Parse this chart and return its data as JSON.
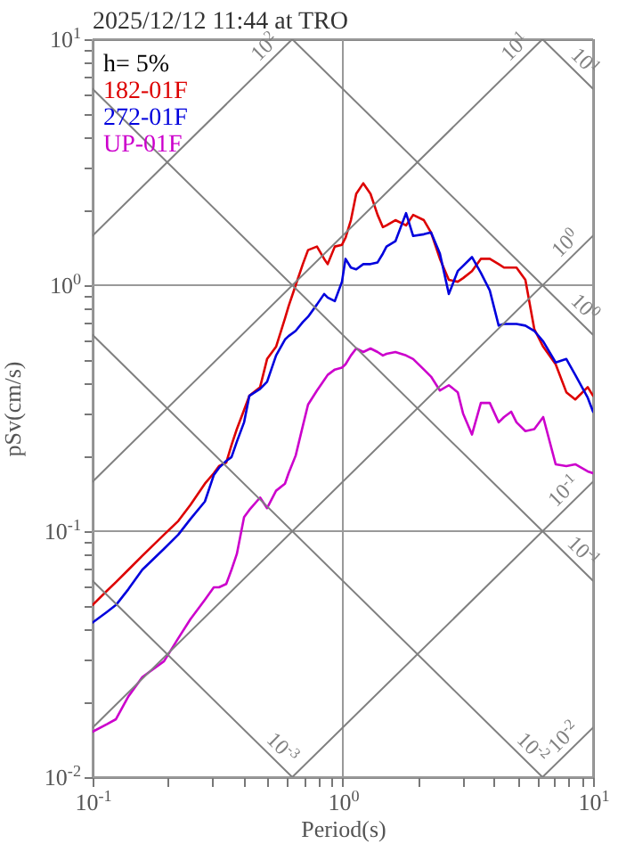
{
  "chart_data": {
    "type": "line",
    "title": "2025/12/12 11:44 at TRO",
    "xlabel": "Period(s)",
    "ylabel": "pSv(cm/s)",
    "legend_title": "h= 5%",
    "log": "xy",
    "grid": true,
    "legend": "top left",
    "xlim": [
      0.1,
      10
    ],
    "ylim": [
      0.01,
      10
    ],
    "xticks": [
      {
        "value": 0.1,
        "label": "10$^{-1}$"
      },
      {
        "value": 0.2,
        "label": null
      },
      {
        "value": 0.3,
        "label": null
      },
      {
        "value": 0.4,
        "label": null
      },
      {
        "value": 0.5,
        "label": null
      },
      {
        "value": 0.6,
        "label": null
      },
      {
        "value": 0.7,
        "label": null
      },
      {
        "value": 0.8,
        "label": null
      },
      {
        "value": 0.9,
        "label": null
      },
      {
        "value": 1,
        "label": "10$^{0}$"
      },
      {
        "value": 2,
        "label": null
      },
      {
        "value": 3,
        "label": null
      },
      {
        "value": 4,
        "label": null
      },
      {
        "value": 5,
        "label": null
      },
      {
        "value": 6,
        "label": null
      },
      {
        "value": 7,
        "label": null
      },
      {
        "value": 8,
        "label": null
      },
      {
        "value": 9,
        "label": null
      },
      {
        "value": 10,
        "label": "10$^{1}$"
      }
    ],
    "yticks": [
      {
        "value": 0.01,
        "label": "10$^{-2}$"
      },
      {
        "value": 0.02,
        "label": null
      },
      {
        "value": 0.03,
        "label": null
      },
      {
        "value": 0.04,
        "label": null
      },
      {
        "value": 0.05,
        "label": null
      },
      {
        "value": 0.06,
        "label": null
      },
      {
        "value": 0.07,
        "label": null
      },
      {
        "value": 0.08,
        "label": null
      },
      {
        "value": 0.09,
        "label": null
      },
      {
        "value": 0.1,
        "label": "10$^{-1}$"
      },
      {
        "value": 0.2,
        "label": null
      },
      {
        "value": 0.3,
        "label": null
      },
      {
        "value": 0.4,
        "label": null
      },
      {
        "value": 0.5,
        "label": null
      },
      {
        "value": 0.6,
        "label": null
      },
      {
        "value": 0.7,
        "label": null
      },
      {
        "value": 0.8,
        "label": null
      },
      {
        "value": 0.9,
        "label": null
      },
      {
        "value": 1,
        "label": "10$^{0}$"
      },
      {
        "value": 2,
        "label": null
      },
      {
        "value": 3,
        "label": null
      },
      {
        "value": 4,
        "label": null
      },
      {
        "value": 5,
        "label": null
      },
      {
        "value": 6,
        "label": null
      },
      {
        "value": 7,
        "label": null
      },
      {
        "value": 8,
        "label": null
      },
      {
        "value": 9,
        "label": null
      },
      {
        "value": 10,
        "label": "10$^{1}$"
      }
    ],
    "x": [
      0.1,
      0.114,
      0.124,
      0.139,
      0.158,
      0.193,
      0.22,
      0.246,
      0.281,
      0.305,
      0.32,
      0.342,
      0.359,
      0.377,
      0.403,
      0.423,
      0.467,
      0.498,
      0.541,
      0.587,
      0.607,
      0.648,
      0.692,
      0.726,
      0.788,
      0.842,
      0.87,
      0.929,
      0.992,
      1.025,
      1.077,
      1.131,
      1.207,
      1.29,
      1.377,
      1.446,
      1.495,
      1.622,
      1.789,
      1.91,
      2.108,
      2.251,
      2.443,
      2.652,
      2.879,
      3.023,
      3.281,
      3.561,
      3.866,
      4.196,
      4.407,
      4.706,
      4.943,
      5.364,
      5.823,
      6.321,
      7.089,
      7.821,
      8.488,
      9.52,
      10
    ],
    "series": [
      {
        "name": "182-01F",
        "color": "#dd0000",
        "values": [
          0.0501,
          0.0572,
          0.0621,
          0.0697,
          0.0794,
          0.0968,
          0.11,
          0.128,
          0.156,
          0.172,
          0.184,
          0.19,
          0.224,
          0.26,
          0.311,
          0.355,
          0.385,
          0.501,
          0.562,
          0.732,
          0.821,
          1,
          1.218,
          1.389,
          1.436,
          1.28,
          1.218,
          1.436,
          1.46,
          1.559,
          1.838,
          2.351,
          2.596,
          2.351,
          1.931,
          1.721,
          1.75,
          1.838,
          1.75,
          1.931,
          1.838,
          1.638,
          1.28,
          1.051,
          1.033,
          1.068,
          1.141,
          1.28,
          1.28,
          1.218,
          1.179,
          1.179,
          1.179,
          1.051,
          0.663,
          0.562,
          0.477,
          0.367,
          0.343,
          0.385,
          0.355
        ]
      },
      {
        "name": "272-01F",
        "color": "#0000dd",
        "values": [
          0.0425,
          0.0469,
          0.0501,
          0.0581,
          0.0697,
          0.0848,
          0.0968,
          0.112,
          0.132,
          0.169,
          0.181,
          0.193,
          0.2,
          0.231,
          0.277,
          0.355,
          0.379,
          0.405,
          0.518,
          0.601,
          0.621,
          0.652,
          0.708,
          0.744,
          0.835,
          0.921,
          0.891,
          0.862,
          1.033,
          1.28,
          1.179,
          1.159,
          1.218,
          1.218,
          1.238,
          1.345,
          1.436,
          1.509,
          1.963,
          1.585,
          1.611,
          1.638,
          1.345,
          0.921,
          1.141,
          1.198,
          1.301,
          1.122,
          0.952,
          0.685,
          0.696,
          0.696,
          0.696,
          0.685,
          0.652,
          0.591,
          0.485,
          0.501,
          0.432,
          0.349,
          0.306
        ]
      },
      {
        "name": "UP-01F",
        "color": "#cc00cc",
        "values": [
          0.0153,
          0.0164,
          0.0172,
          0.0213,
          0.0255,
          0.0296,
          0.0367,
          0.0439,
          0.0526,
          0.0591,
          0.0591,
          0.061,
          0.0697,
          0.0807,
          0.114,
          0.122,
          0.137,
          0.124,
          0.146,
          0.156,
          0.172,
          0.203,
          0.268,
          0.327,
          0.373,
          0.411,
          0.432,
          0.454,
          0.462,
          0.477,
          0.518,
          0.553,
          0.535,
          0.553,
          0.535,
          0.518,
          0.526,
          0.535,
          0.518,
          0.501,
          0.454,
          0.425,
          0.373,
          0.392,
          0.367,
          0.301,
          0.247,
          0.332,
          0.332,
          0.277,
          0.291,
          0.306,
          0.277,
          0.255,
          0.26,
          0.291,
          0.187,
          0.184,
          0.187,
          0.175,
          0.172
        ]
      },
      {
        "name": "10$^{2}$",
        "color": "#808080",
        "x": [
          0.1,
          0.628
        ],
        "values": [
          1.59,
          10
        ]
      },
      {
        "name": "10$^{1}$",
        "color": "#808080",
        "x": [
          0.1,
          6.28
        ],
        "values": [
          0.159,
          10
        ]
      },
      {
        "name": "10$^{0}$",
        "color": "#808080",
        "x": [
          0.1,
          10
        ],
        "values": [
          0.0159,
          1.59
        ]
      },
      {
        "name": "10$^{-1}$",
        "color": "#808080",
        "x": [
          0.628,
          10
        ],
        "values": [
          0.01,
          0.159
        ]
      },
      {
        "name": "10$^{-2}$",
        "color": "#808080",
        "x": [
          6.28,
          10
        ],
        "values": [
          0.01,
          0.0159
        ]
      },
      {
        "name": "10$^{1}$",
        "color": "#808080",
        "x": [
          6.28,
          10
        ],
        "values": [
          10,
          6.28
        ]
      },
      {
        "name": "10$^{0}$",
        "color": "#808080",
        "x": [
          0.628,
          10
        ],
        "values": [
          10,
          0.628
        ]
      },
      {
        "name": "10$^{-1}$",
        "color": "#808080",
        "x": [
          0.1,
          10
        ],
        "values": [
          6.28,
          0.0628
        ]
      },
      {
        "name": "10$^{-2}$",
        "color": "#808080",
        "x": [
          0.1,
          6.28
        ],
        "values": [
          0.628,
          0.01
        ]
      },
      {
        "name": "10$^{-3}$",
        "color": "#808080",
        "x": [
          0.1,
          0.628
        ],
        "values": [
          0.0628,
          0.01
        ]
      }
    ]
  }
}
